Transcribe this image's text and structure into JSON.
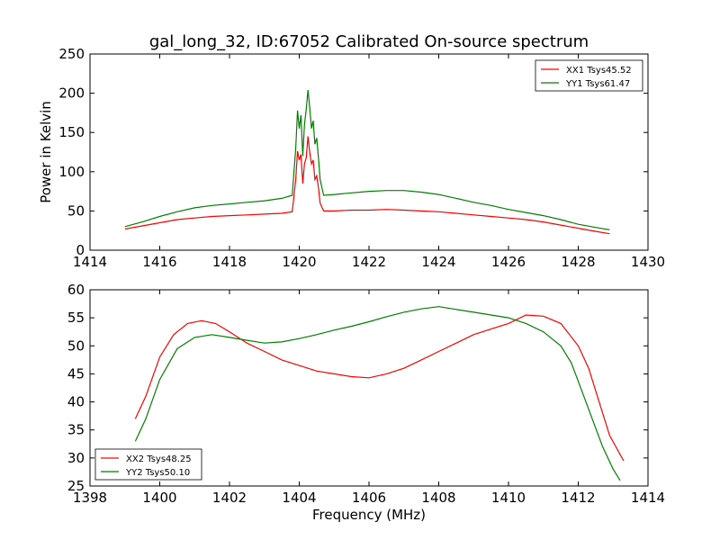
{
  "title": "gal_long_32, ID:67052 Calibrated On-source spectrum",
  "colors": {
    "red": "#ff0000",
    "green": "#008000",
    "axis": "#000000",
    "background": "#ffffff"
  },
  "chart_data": [
    {
      "type": "line",
      "title": "gal_long_32, ID:67052 Calibrated On-source spectrum",
      "xlabel": "",
      "ylabel": "Power in Kelvin",
      "xlim": [
        1414,
        1430
      ],
      "ylim": [
        0,
        250
      ],
      "x_ticks": [
        1414,
        1416,
        1418,
        1420,
        1422,
        1424,
        1426,
        1428,
        1430
      ],
      "y_ticks": [
        0,
        50,
        100,
        150,
        200,
        250
      ],
      "grid": false,
      "legend": "top-right",
      "series": [
        {
          "name": "XX1 Tsys45.52",
          "color": "#ff0000",
          "points": [
            [
              1415.0,
              27
            ],
            [
              1415.5,
              31
            ],
            [
              1416.0,
              35
            ],
            [
              1416.5,
              39
            ],
            [
              1417.0,
              41
            ],
            [
              1417.5,
              43
            ],
            [
              1418.0,
              44
            ],
            [
              1418.5,
              45
            ],
            [
              1419.0,
              46
            ],
            [
              1419.5,
              47
            ],
            [
              1419.8,
              49
            ],
            [
              1419.9,
              90
            ],
            [
              1419.95,
              126
            ],
            [
              1420.0,
              115
            ],
            [
              1420.05,
              122
            ],
            [
              1420.1,
              85
            ],
            [
              1420.15,
              110
            ],
            [
              1420.2,
              118
            ],
            [
              1420.25,
              145
            ],
            [
              1420.3,
              125
            ],
            [
              1420.35,
              110
            ],
            [
              1420.4,
              115
            ],
            [
              1420.45,
              90
            ],
            [
              1420.5,
              95
            ],
            [
              1420.55,
              80
            ],
            [
              1420.6,
              60
            ],
            [
              1420.7,
              50
            ],
            [
              1421.0,
              50
            ],
            [
              1421.5,
              51
            ],
            [
              1422.0,
              51
            ],
            [
              1422.5,
              52
            ],
            [
              1423.0,
              51
            ],
            [
              1423.5,
              50
            ],
            [
              1424.0,
              49
            ],
            [
              1424.5,
              47
            ],
            [
              1425.0,
              45
            ],
            [
              1425.5,
              43
            ],
            [
              1426.0,
              41
            ],
            [
              1426.5,
              39
            ],
            [
              1427.0,
              36
            ],
            [
              1427.5,
              32
            ],
            [
              1428.0,
              28
            ],
            [
              1428.5,
              24
            ],
            [
              1428.9,
              21
            ]
          ]
        },
        {
          "name": "YY1 Tsys61.47",
          "color": "#008000",
          "points": [
            [
              1415.0,
              30
            ],
            [
              1415.5,
              36
            ],
            [
              1416.0,
              43
            ],
            [
              1416.5,
              49
            ],
            [
              1417.0,
              54
            ],
            [
              1417.5,
              57
            ],
            [
              1418.0,
              59
            ],
            [
              1418.5,
              61
            ],
            [
              1419.0,
              63
            ],
            [
              1419.5,
              66
            ],
            [
              1419.8,
              70
            ],
            [
              1419.9,
              130
            ],
            [
              1419.95,
              178
            ],
            [
              1420.0,
              155
            ],
            [
              1420.05,
              172
            ],
            [
              1420.1,
              120
            ],
            [
              1420.15,
              160
            ],
            [
              1420.2,
              180
            ],
            [
              1420.25,
              204
            ],
            [
              1420.3,
              182
            ],
            [
              1420.35,
              155
            ],
            [
              1420.4,
              165
            ],
            [
              1420.45,
              135
            ],
            [
              1420.5,
              143
            ],
            [
              1420.55,
              118
            ],
            [
              1420.6,
              90
            ],
            [
              1420.7,
              70
            ],
            [
              1421.0,
              71
            ],
            [
              1421.5,
              73
            ],
            [
              1422.0,
              75
            ],
            [
              1422.5,
              76
            ],
            [
              1423.0,
              76
            ],
            [
              1423.5,
              74
            ],
            [
              1424.0,
              71
            ],
            [
              1424.5,
              66
            ],
            [
              1425.0,
              61
            ],
            [
              1425.5,
              57
            ],
            [
              1426.0,
              52
            ],
            [
              1426.5,
              48
            ],
            [
              1427.0,
              44
            ],
            [
              1427.5,
              39
            ],
            [
              1428.0,
              33
            ],
            [
              1428.5,
              29
            ],
            [
              1428.9,
              26
            ]
          ]
        }
      ]
    },
    {
      "type": "line",
      "title": "",
      "xlabel": "Frequency (MHz)",
      "ylabel": "",
      "xlim": [
        1398,
        1414
      ],
      "ylim": [
        25,
        60
      ],
      "x_ticks": [
        1398,
        1400,
        1402,
        1404,
        1406,
        1408,
        1410,
        1412,
        1414
      ],
      "y_ticks": [
        25,
        30,
        35,
        40,
        45,
        50,
        55,
        60
      ],
      "grid": false,
      "legend": "bottom-left",
      "series": [
        {
          "name": "XX2 Tsys48.25",
          "color": "#ff0000",
          "points": [
            [
              1399.3,
              37
            ],
            [
              1399.6,
              41
            ],
            [
              1400.0,
              48
            ],
            [
              1400.4,
              52
            ],
            [
              1400.8,
              54
            ],
            [
              1401.2,
              54.5
            ],
            [
              1401.6,
              54
            ],
            [
              1402.0,
              52.5
            ],
            [
              1402.5,
              50.5
            ],
            [
              1403.0,
              49
            ],
            [
              1403.5,
              47.5
            ],
            [
              1404.0,
              46.5
            ],
            [
              1404.5,
              45.5
            ],
            [
              1405.0,
              45
            ],
            [
              1405.5,
              44.5
            ],
            [
              1406.0,
              44.3
            ],
            [
              1406.5,
              45
            ],
            [
              1407.0,
              46
            ],
            [
              1407.5,
              47.5
            ],
            [
              1408.0,
              49
            ],
            [
              1408.5,
              50.5
            ],
            [
              1409.0,
              52
            ],
            [
              1409.5,
              53
            ],
            [
              1410.0,
              54
            ],
            [
              1410.5,
              55.5
            ],
            [
              1411.0,
              55.3
            ],
            [
              1411.5,
              54
            ],
            [
              1412.0,
              50
            ],
            [
              1412.3,
              46
            ],
            [
              1412.6,
              40
            ],
            [
              1412.9,
              34
            ],
            [
              1413.3,
              29.5
            ]
          ]
        },
        {
          "name": "YY2 Tsys50.10",
          "color": "#008000",
          "points": [
            [
              1399.3,
              33
            ],
            [
              1399.6,
              37
            ],
            [
              1400.0,
              44
            ],
            [
              1400.5,
              49.5
            ],
            [
              1401.0,
              51.5
            ],
            [
              1401.5,
              52
            ],
            [
              1402.0,
              51.5
            ],
            [
              1402.5,
              51
            ],
            [
              1403.0,
              50.5
            ],
            [
              1403.5,
              50.7
            ],
            [
              1404.0,
              51.3
            ],
            [
              1404.5,
              52
            ],
            [
              1405.0,
              52.8
            ],
            [
              1405.5,
              53.5
            ],
            [
              1406.0,
              54.3
            ],
            [
              1406.5,
              55.2
            ],
            [
              1407.0,
              56
            ],
            [
              1407.5,
              56.6
            ],
            [
              1408.0,
              57
            ],
            [
              1408.5,
              56.5
            ],
            [
              1409.0,
              56
            ],
            [
              1409.5,
              55.5
            ],
            [
              1410.0,
              55
            ],
            [
              1410.5,
              54
            ],
            [
              1411.0,
              52.5
            ],
            [
              1411.5,
              50
            ],
            [
              1411.8,
              47
            ],
            [
              1412.1,
              42
            ],
            [
              1412.4,
              37
            ],
            [
              1412.7,
              32
            ],
            [
              1413.0,
              28
            ],
            [
              1413.2,
              26
            ]
          ]
        }
      ]
    }
  ]
}
